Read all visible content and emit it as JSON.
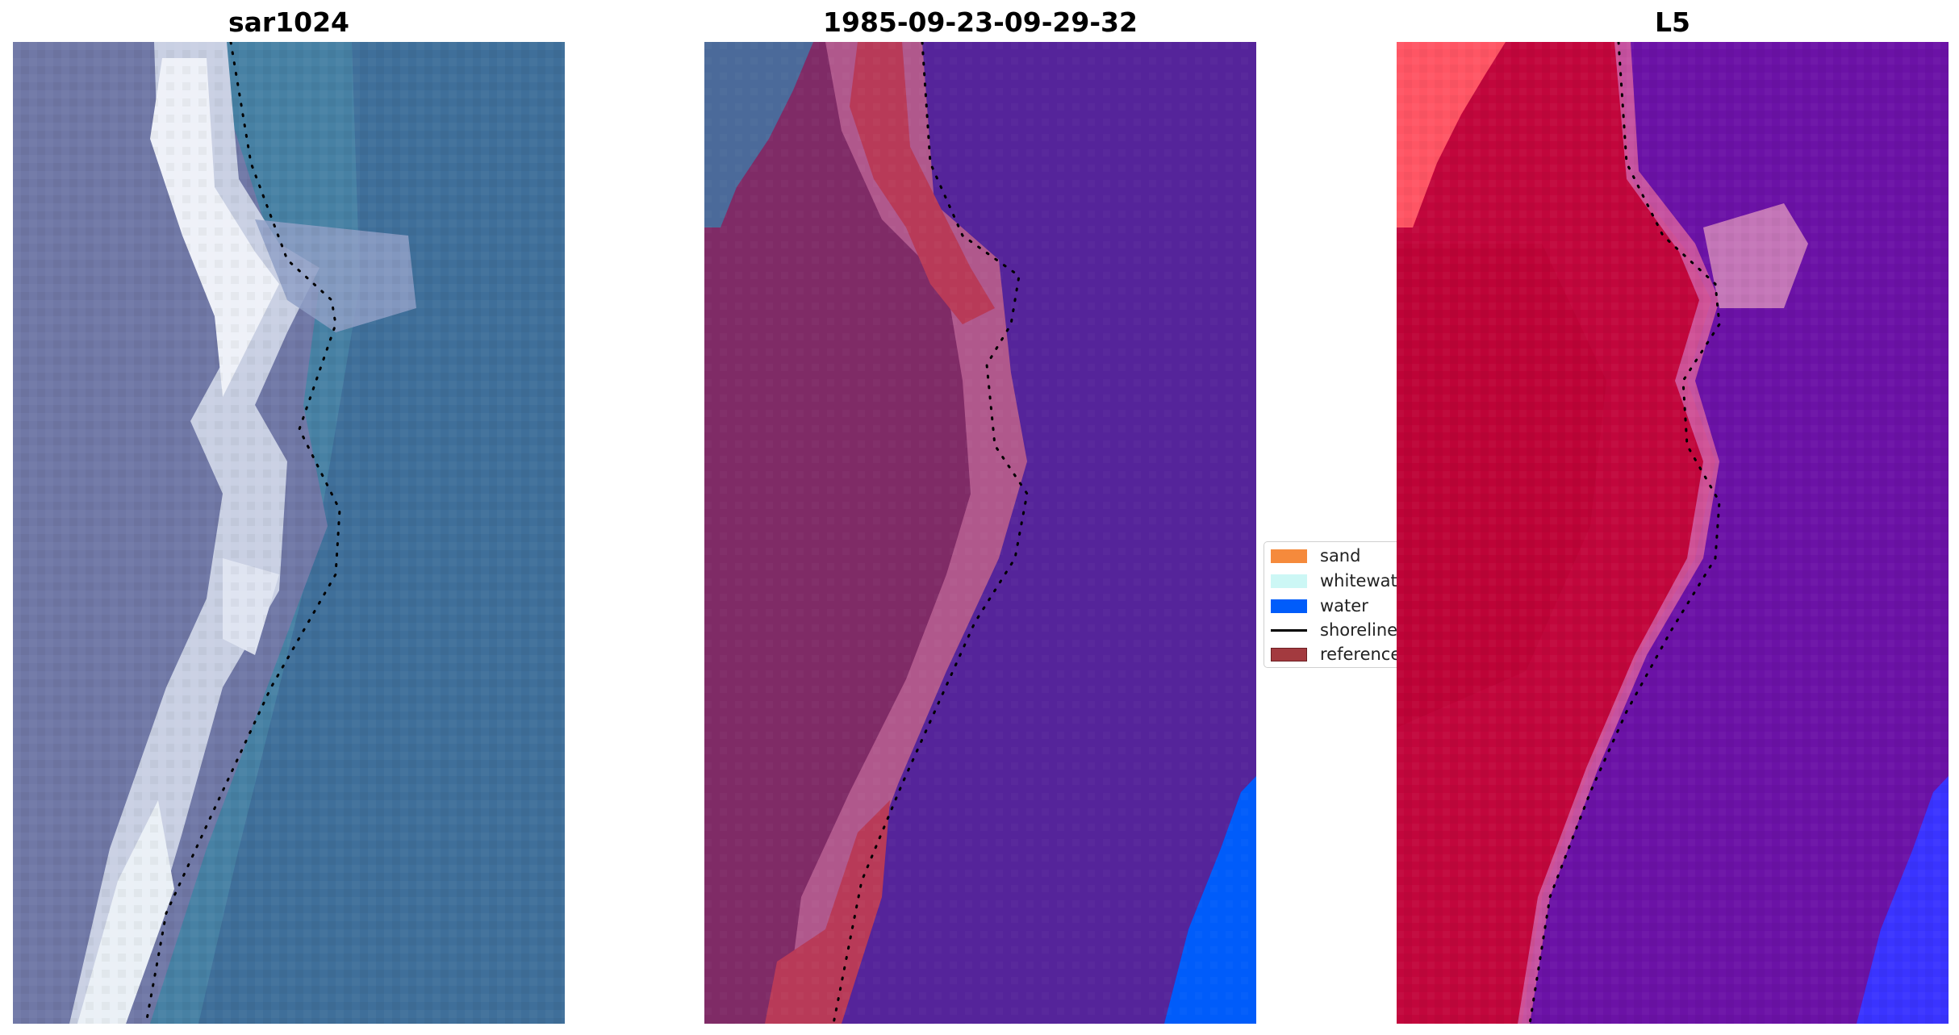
{
  "panels": [
    {
      "title": "sar1024",
      "kind": "rgb-composite"
    },
    {
      "title": "1985-09-23-09-29-32",
      "kind": "classification"
    },
    {
      "title": "L5",
      "kind": "probability"
    }
  ],
  "legend": {
    "items": [
      {
        "label": "sand",
        "color": "#f58a3c",
        "marker": "patch"
      },
      {
        "label": "whitewater",
        "color": "#ccf7f5",
        "marker": "patch"
      },
      {
        "label": "water",
        "color": "#005cfa",
        "marker": "patch"
      },
      {
        "label": "shoreline",
        "color": "#000000",
        "marker": "line"
      },
      {
        "label": "reference",
        "color": "#a33a3f",
        "marker": "patch"
      }
    ]
  },
  "colors": {
    "sand_overlay": "#7f2b66",
    "water_overlay": "#55249a",
    "reference_band": "#b83a58",
    "land_class": "#c2063c",
    "water_class": "#6b12a6",
    "sar_deep": "#3e6393",
    "sar_surf": "#e9eef5"
  }
}
